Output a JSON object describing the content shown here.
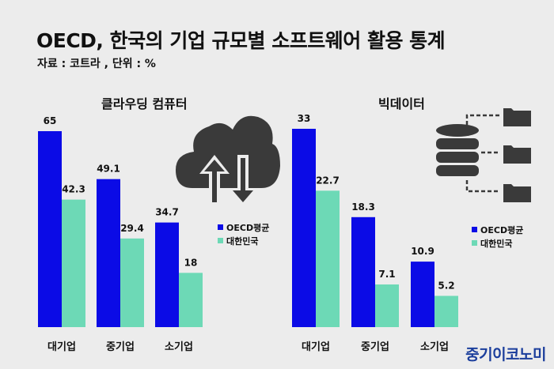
{
  "title": "OECD, 한국의 기업 규모별 소프트웨어 활용 통계",
  "subtitle": "자료 : 코트라 , 단위 : %",
  "brand": "중기이코노미",
  "colors": {
    "oecd": "#0b0be6",
    "korea": "#6dd9b6",
    "icon": "#3a3a3a",
    "background": "#ececec"
  },
  "chart_data": [
    {
      "type": "bar",
      "title": "클라우딩 컴퓨터",
      "icon": "cloud-upload-download-icon",
      "categories": [
        "대기업",
        "중기업",
        "소기업"
      ],
      "series": [
        {
          "name": "OECD평균",
          "values": [
            65,
            49.1,
            34.7
          ]
        },
        {
          "name": "대한민국",
          "values": [
            42.3,
            29.4,
            18
          ]
        }
      ],
      "legend_position": "right"
    },
    {
      "type": "bar",
      "title": "빅데이터",
      "icon": "database-folders-icon",
      "categories": [
        "대기업",
        "중기업",
        "소기업"
      ],
      "series": [
        {
          "name": "OECD평균",
          "values": [
            33,
            18.3,
            10.9
          ]
        },
        {
          "name": "대한민국",
          "values": [
            22.7,
            7.1,
            5.2
          ]
        }
      ],
      "legend_position": "right"
    }
  ]
}
